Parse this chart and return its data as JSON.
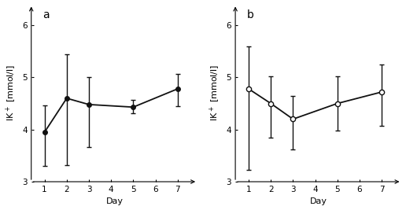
{
  "panel_a": {
    "label": "a",
    "x": [
      1,
      2,
      3,
      5,
      7
    ],
    "y": [
      3.95,
      4.6,
      4.48,
      4.43,
      4.78
    ],
    "yerr_lo": [
      0.65,
      1.28,
      0.82,
      0.12,
      0.33
    ],
    "yerr_hi": [
      0.52,
      0.85,
      0.52,
      0.14,
      0.28
    ]
  },
  "panel_b": {
    "label": "b",
    "x": [
      1,
      2,
      3,
      5,
      7
    ],
    "y": [
      4.78,
      4.5,
      4.2,
      4.5,
      4.72
    ],
    "yerr_lo": [
      1.55,
      0.65,
      0.58,
      0.52,
      0.65
    ],
    "yerr_hi": [
      0.82,
      0.52,
      0.45,
      0.52,
      0.52
    ]
  },
  "ylabel": "IK$^+$ [mmol/l]",
  "xlabel": "Day",
  "ylim": [
    3.0,
    6.4
  ],
  "yticks": [
    3,
    4,
    5,
    6
  ],
  "xticks": [
    1,
    2,
    3,
    4,
    5,
    6,
    7
  ],
  "background_color": "#ffffff",
  "line_color": "#111111",
  "linewidth": 1.3,
  "capsize": 2.5,
  "elinewidth": 1.0,
  "label_fontsize": 8,
  "tick_fontsize": 7.5,
  "panel_label_fontsize": 10
}
